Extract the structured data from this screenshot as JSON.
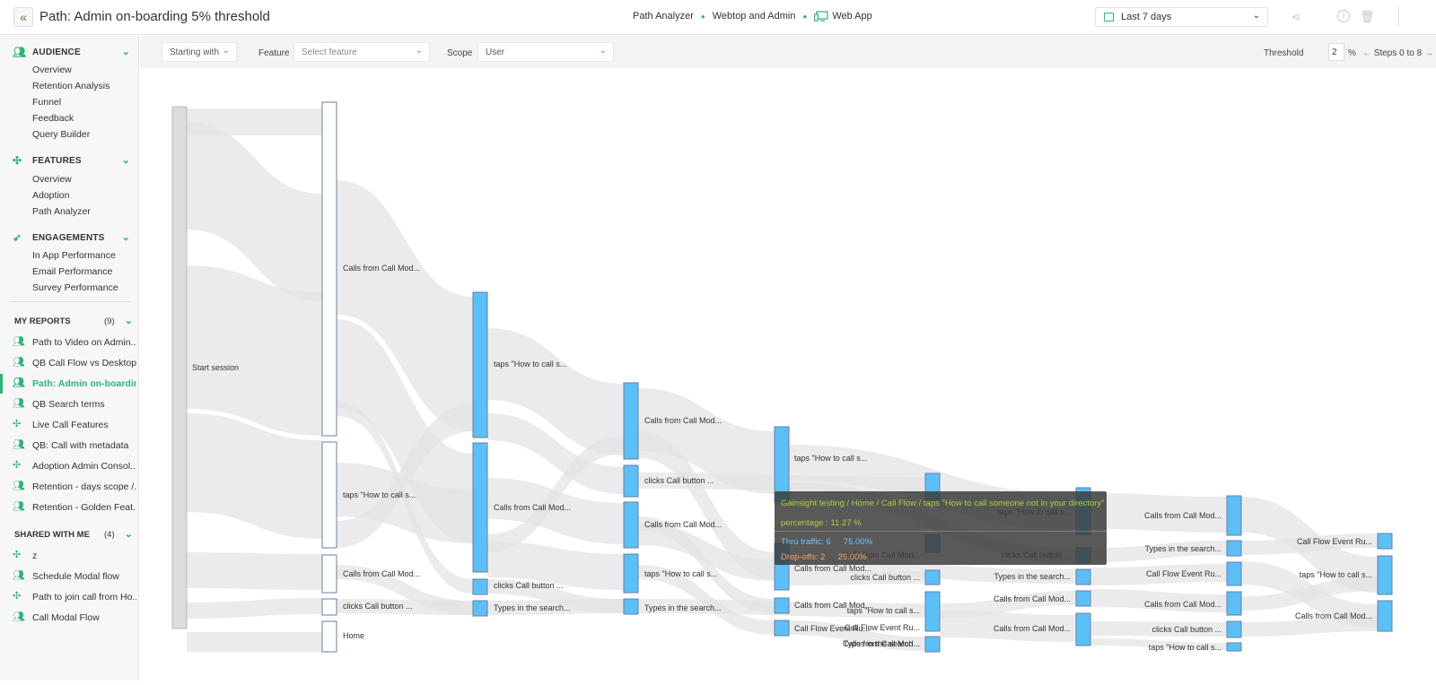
{
  "header": {
    "back_icon": "«",
    "title": "Path: Admin on-boarding 5% threshold",
    "crumb1": "Path Analyzer",
    "crumb2": "Webtop and Admin",
    "crumb3": "Web App",
    "date_range": "Last 7 days"
  },
  "sidebar": {
    "audience": {
      "label": "AUDIENCE",
      "items": [
        "Overview",
        "Retention Analysis",
        "Funnel",
        "Feedback",
        "Query Builder"
      ]
    },
    "features": {
      "label": "FEATURES",
      "items": [
        "Overview",
        "Adoption",
        "Path Analyzer"
      ]
    },
    "engagements": {
      "label": "ENGAGEMENTS",
      "items": [
        "In App Performance",
        "Email Performance",
        "Survey Performance"
      ]
    },
    "my_reports": {
      "label": "MY REPORTS",
      "count": "(9)",
      "items": [
        "Path to Video on Admin...",
        "QB Call Flow vs Desktop...",
        "Path: Admin on-boardin...",
        "QB Search terms",
        "Live Call Features",
        "QB: Call with metadata",
        "Adoption Admin Consol...",
        "Retention - days scope /...",
        "Retention - Golden Feat..."
      ]
    },
    "shared": {
      "label": "SHARED WITH ME",
      "count": "(4)",
      "items": [
        "z",
        "Schedule Modal flow",
        "Path to join call from Ho...",
        "Call Modal Flow"
      ]
    }
  },
  "filters": {
    "starting_with": "Starting with",
    "feature_label": "Feature",
    "feature_placeholder": "Select feature",
    "scope_label": "Scope",
    "scope_value": "User",
    "threshold_label": "Threshold",
    "threshold_value": "2",
    "percent": "%",
    "steps": "Steps 0 to 8"
  },
  "sankey": {
    "labels": [
      "Start session",
      "Calls from Call Mod...",
      "taps \"How to call s...",
      "Calls from Call Mod...",
      "clicks Call button ...",
      "Home",
      "taps \"How to call s...",
      "Calls from Call Mod...",
      "clicks Call button ...",
      "Types in the search...",
      "Calls from Call Mod...",
      "clicks Call button ...",
      "Calls from Call Mod...",
      "taps \"How to call s...",
      "Types in the search...",
      "taps \"How to call s...",
      "Calls from Call Mod...",
      "Calls from Call Mod...",
      "Call Flow Event Ru...",
      "Calls from Call Mod...",
      "clicks Call button ...",
      "taps \"How to call s...",
      "Types in the search...",
      "Call Flow Event Ru...",
      "Calls from Call Mod...",
      "taps \"How to call s...",
      "clicks Call button ...",
      "Types in the search...",
      "Calls from Call Mod...",
      "Calls from Call Mod...",
      "Calls from Call Mod...",
      "Types in the search...",
      "Call Flow Event Ru...",
      "Calls from Call Mod...",
      "clicks Call button ...",
      "taps \"How to call s...",
      "Call Flow Event Ru...",
      "taps \"How to call s...",
      "Calls from Call Mod..."
    ]
  },
  "tooltip": {
    "path": "Gainsight testing / Home / Call Flow / taps \"How to call someone not in your directory\"",
    "percentage": "percentage : 11.27 %",
    "thru_label": "Thru traffic: 6",
    "thru_pct": "75.00%",
    "drop_label": "Drop-offs: 2",
    "drop_pct": "25.00%"
  },
  "colors": {
    "accent": "#2bb673",
    "node": "#5bc0f8",
    "link": "#e2e2e2"
  }
}
